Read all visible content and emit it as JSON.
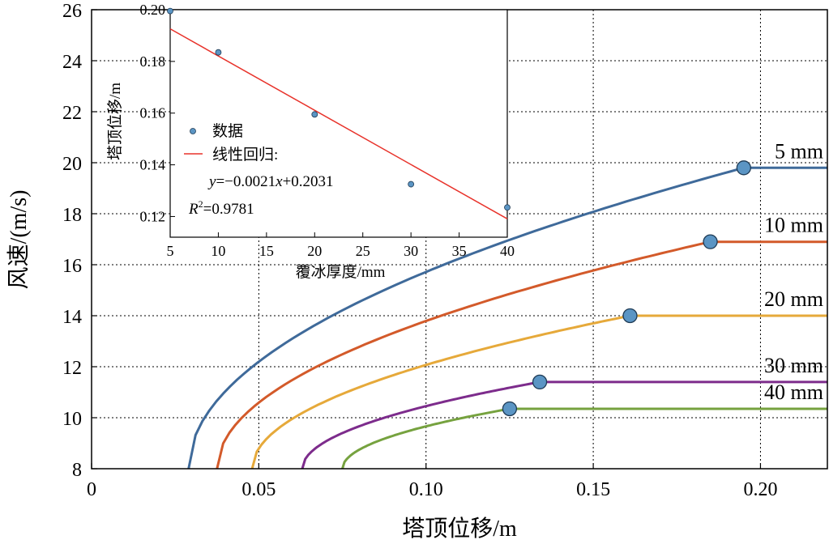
{
  "chart_data": [
    {
      "type": "line",
      "xlabel": "塔顶位移/m",
      "ylabel": "风速/(m/s)",
      "xlim": [
        0,
        0.22
      ],
      "ylim": [
        8,
        26
      ],
      "xticks": [
        0,
        0.05,
        0.1,
        0.15,
        0.2
      ],
      "xtick_labels": [
        "0",
        "0.05",
        "0.10",
        "0.15",
        "0.20"
      ],
      "yticks": [
        8,
        10,
        12,
        14,
        16,
        18,
        20,
        22,
        24,
        26
      ],
      "ytick_labels": [
        "8",
        "10",
        "12",
        "14",
        "16",
        "18",
        "20",
        "22",
        "24",
        "26"
      ],
      "grid": true,
      "series": [
        {
          "name": "5 mm",
          "color": "#3f6a9a",
          "x0": 0.029,
          "peak": [
            0.195,
            19.8
          ],
          "flat_end": 0.22
        },
        {
          "name": "10 mm",
          "color": "#d35a2a",
          "x0": 0.0375,
          "peak": [
            0.185,
            16.9
          ],
          "flat_end": 0.22
        },
        {
          "name": "20 mm",
          "color": "#e6a93a",
          "x0": 0.048,
          "peak": [
            0.161,
            14.0
          ],
          "flat_end": 0.22
        },
        {
          "name": "30 mm",
          "color": "#7d2c8c",
          "x0": 0.063,
          "peak": [
            0.134,
            11.4
          ],
          "flat_end": 0.22
        },
        {
          "name": "40 mm",
          "color": "#76a23f",
          "x0": 0.075,
          "peak": [
            0.125,
            10.35
          ],
          "flat_end": 0.22
        }
      ],
      "marker_color": "#5b95c4"
    },
    {
      "type": "scatter",
      "xlabel": "覆冰厚度/mm",
      "ylabel": "塔顶位移/m",
      "xlim": [
        5,
        40
      ],
      "ylim": [
        0.112,
        0.2
      ],
      "xticks": [
        5,
        10,
        15,
        20,
        25,
        30,
        35,
        40
      ],
      "xtick_labels": [
        "5",
        "10",
        "15",
        "20",
        "25",
        "30",
        "35",
        "40"
      ],
      "yticks": [
        0.12,
        0.14,
        0.16,
        0.18,
        0.2
      ],
      "ytick_labels": [
        "0.12",
        "0.14",
        "0.16",
        "0.18",
        "0.20"
      ],
      "grid": false,
      "points": {
        "x": [
          5,
          10,
          20,
          30,
          40
        ],
        "y": [
          0.1995,
          0.1835,
          0.1595,
          0.1325,
          0.1235
        ]
      },
      "fit": {
        "slope": -0.0021,
        "intercept": 0.2031,
        "color": "#e8322a"
      },
      "legend": {
        "data_label": "数据",
        "fit_label": "线性回归:",
        "equation_y": "y",
        "equation_rest": "=−0.0021",
        "equation_x": "x",
        "equation_tail": "+0.2031",
        "r2_letter": "R",
        "r2_sup": "2",
        "r2_value": "=0.9781"
      }
    }
  ]
}
